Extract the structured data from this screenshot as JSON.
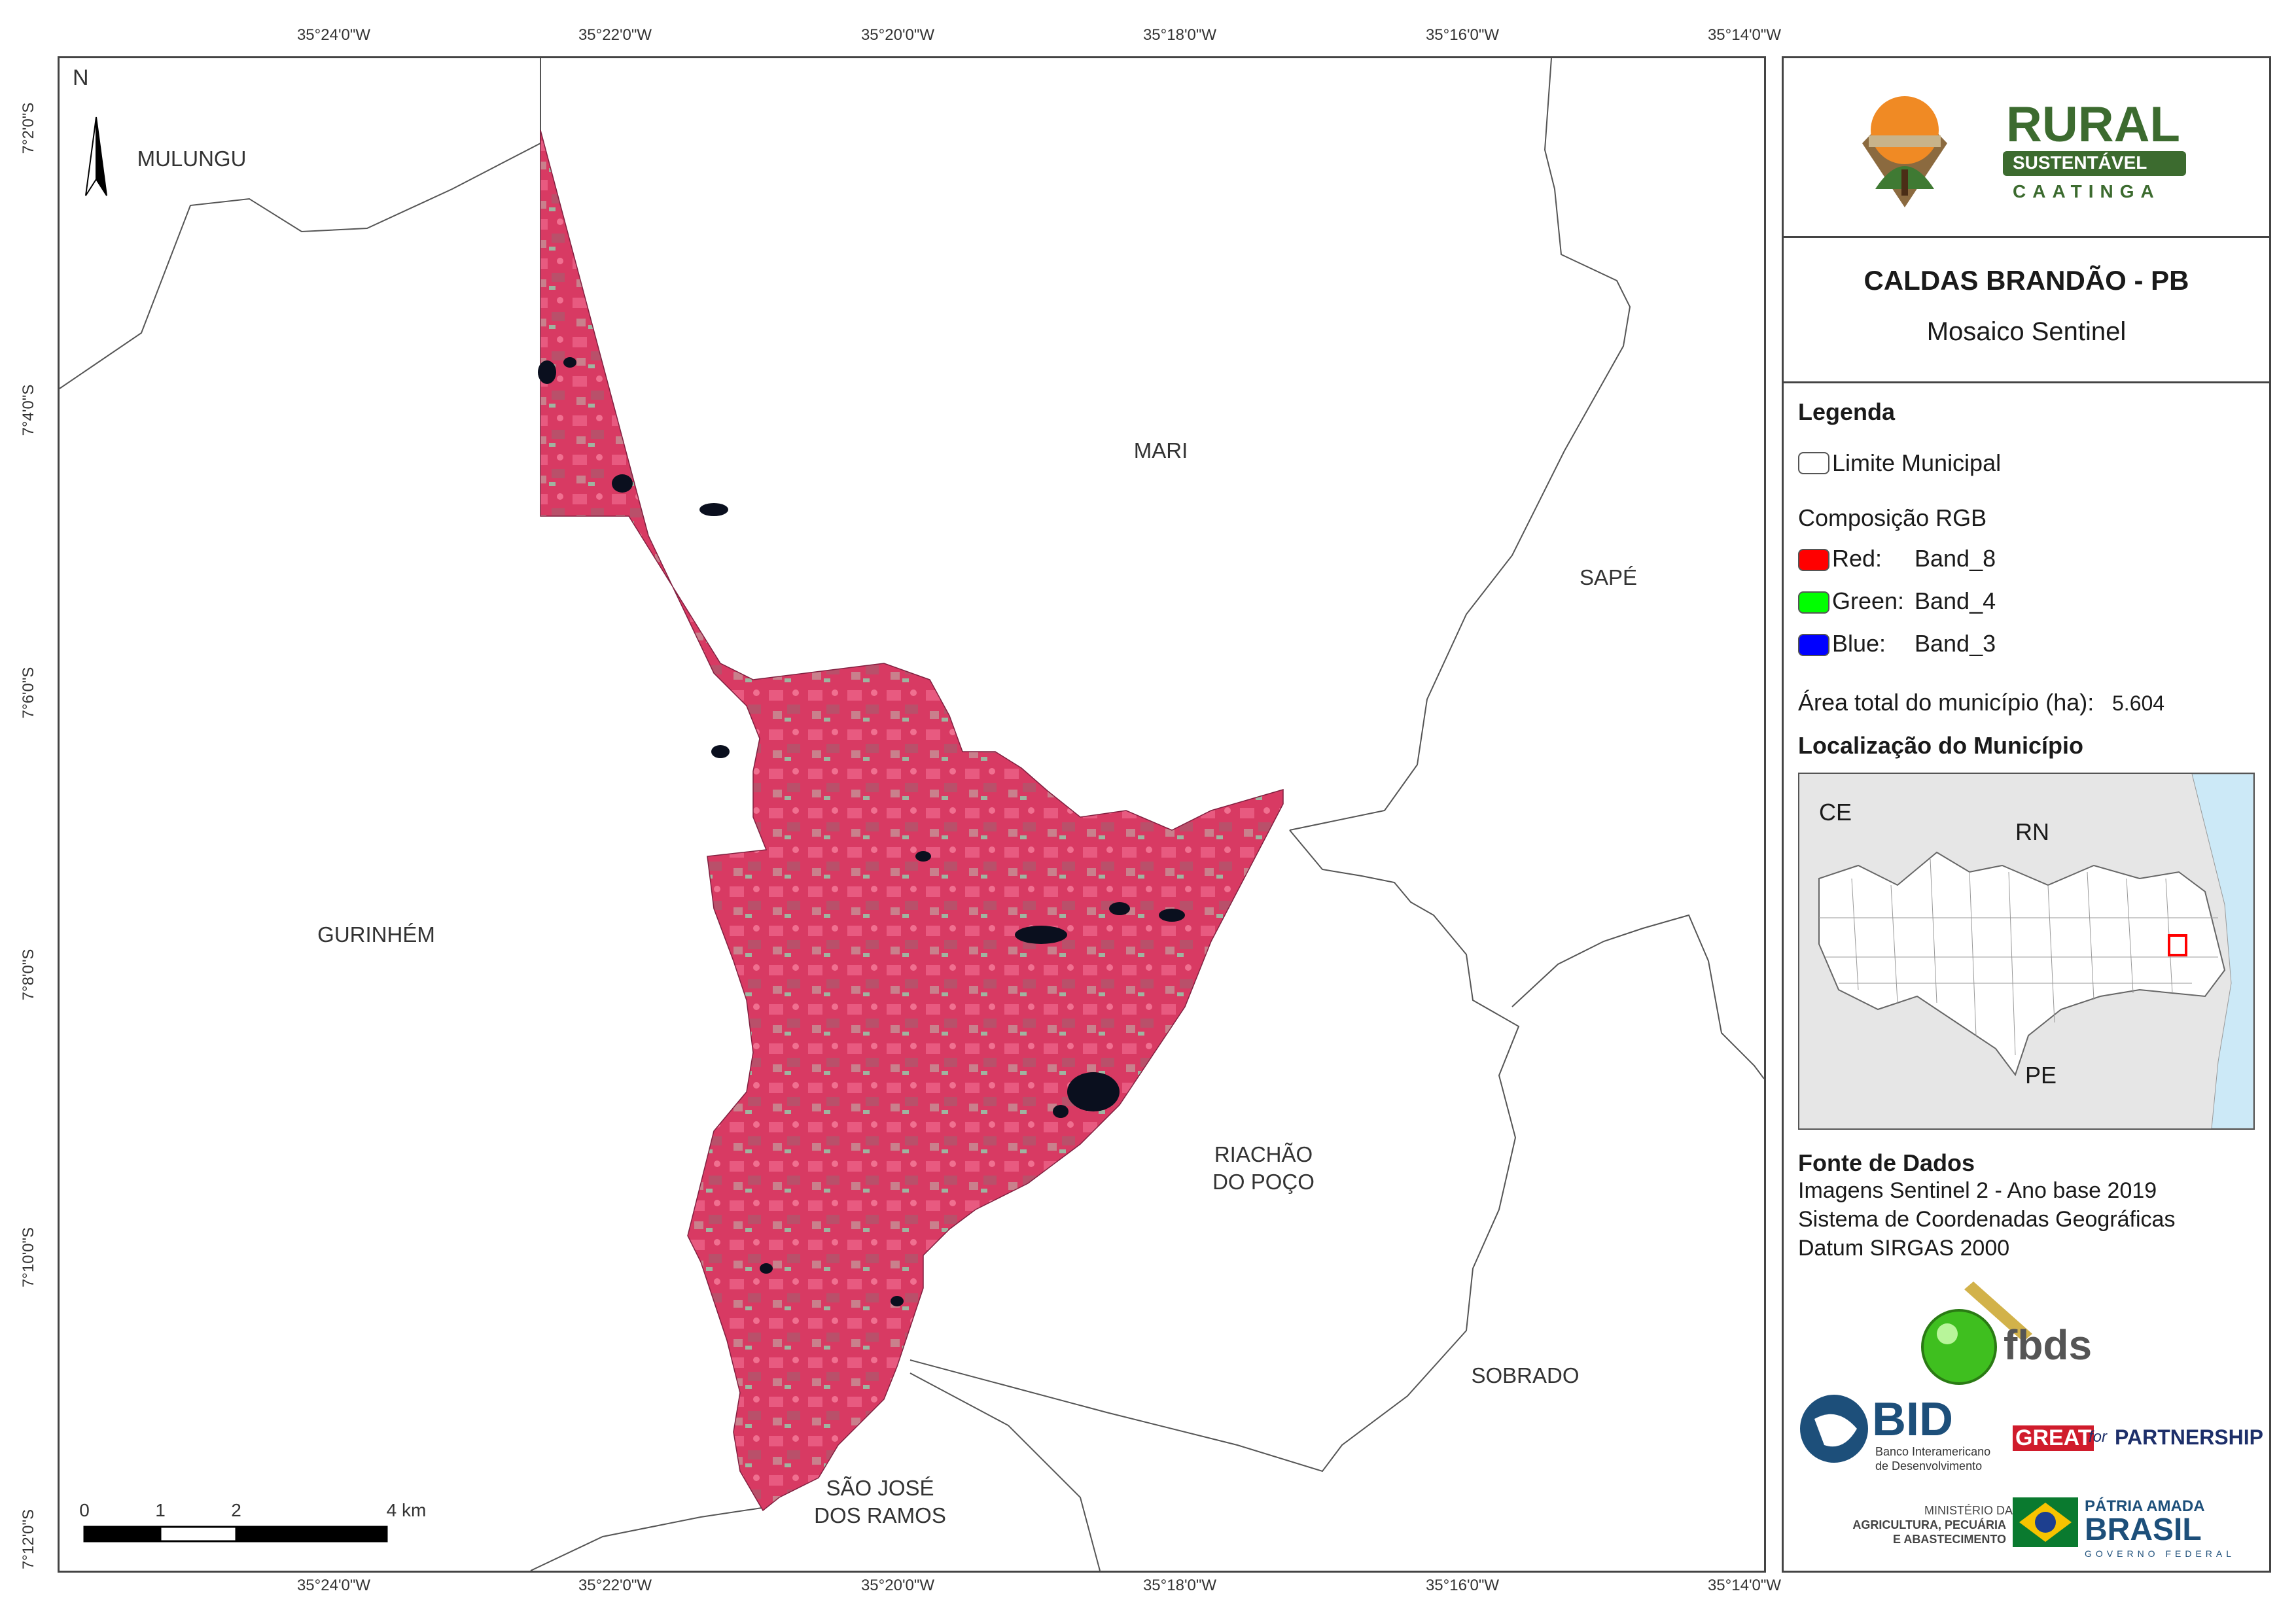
{
  "coords": {
    "lon": [
      "35°24'0\"W",
      "35°22'0\"W",
      "35°20'0\"W",
      "35°18'0\"W",
      "35°16'0\"W",
      "35°14'0\"W"
    ],
    "lat": [
      "7°2'0\"S",
      "7°4'0\"S",
      "7°6'0\"S",
      "7°8'0\"S",
      "7°10'0\"S",
      "7°12'0\"S"
    ]
  },
  "north_arrow": {
    "label": "N"
  },
  "places": {
    "mulungu": "MULUNGU",
    "mari": "MARI",
    "sape": "SAPÉ",
    "gurinhem": "GURINHÉM",
    "riachao_1": "RIACHÃO",
    "riachao_2": "DO POÇO",
    "sobrado": "SOBRADO",
    "sao_jose_1": "SÃO JOSÉ",
    "sao_jose_2": "DOS RAMOS"
  },
  "scalebar": {
    "ticks": [
      "0",
      "1",
      "2",
      "4 km"
    ]
  },
  "logo_rural": {
    "line1": "RURAL",
    "line2": "SUSTENTÁVEL",
    "line3": "CAATINGA"
  },
  "title": {
    "main": "CALDAS BRANDÃO - PB",
    "sub": "Mosaico Sentinel"
  },
  "legend": {
    "heading": "Legenda",
    "limit": "Limite Municipal",
    "rgb_heading": "Composição RGB",
    "bands": [
      {
        "label": "Red:",
        "band": "Band_8",
        "color": "#ff0000"
      },
      {
        "label": "Green:",
        "band": "Band_4",
        "color": "#00ff00"
      },
      {
        "label": "Blue:",
        "band": "Band_3",
        "color": "#0000ff"
      }
    ],
    "area_label": "Área total do município (ha):",
    "area_value": "5.604"
  },
  "location": {
    "heading": "Localização do Município",
    "labels": {
      "ce": "CE",
      "rn": "RN",
      "pe": "PE"
    }
  },
  "source": {
    "heading": "Fonte de Dados",
    "lines": [
      "Imagens Sentinel 2 - Ano base 2019",
      "Sistema de Coordenadas Geográficas",
      "Datum SIRGAS 2000"
    ]
  },
  "logos": {
    "fbds": "fbds",
    "bid": "BID",
    "bid_sub1": "Banco Interamericano",
    "bid_sub2": "de Desenvolvimento",
    "great": "GREAT",
    "for": "for",
    "partnership": "PARTNERSHIP",
    "ministerio1": "MINISTÉRIO DA",
    "ministerio2": "AGRICULTURA, PECUÁRIA",
    "ministerio3": "E ABASTECIMENTO",
    "patria": "PÁTRIA AMADA",
    "brasil": "BRASIL",
    "governo": "GOVERNO FEDERAL"
  },
  "colors": {
    "frame": "#444444",
    "municipality": "#dc3c64",
    "water": "#0a0f1e",
    "ocean": "#cce9f7",
    "state_fill": "#e0e0e0"
  }
}
